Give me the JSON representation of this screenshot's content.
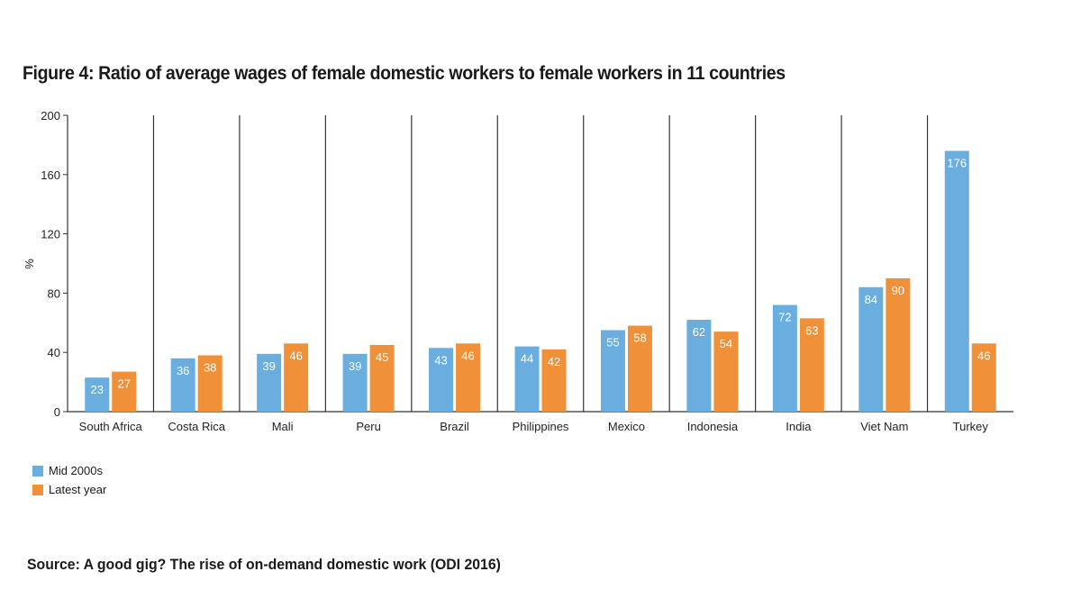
{
  "chart_data": {
    "type": "bar",
    "title": "Figure 4: Ratio of average wages of female domestic workers to female workers in 11 countries",
    "ylabel": "%",
    "xlabel": "",
    "ylim": [
      0,
      200
    ],
    "yticks": [
      0,
      40,
      80,
      120,
      160,
      200
    ],
    "categories": [
      "South Africa",
      "Costa Rica",
      "Mali",
      "Peru",
      "Brazil",
      "Philippines",
      "Mexico",
      "Indonesia",
      "India",
      "Viet Nam",
      "Turkey"
    ],
    "series": [
      {
        "name": "Mid 2000s",
        "color": "#6aaee0",
        "values": [
          23,
          36,
          39,
          39,
          43,
          44,
          55,
          62,
          72,
          84,
          176
        ]
      },
      {
        "name": "Latest year",
        "color": "#f0913a",
        "values": [
          27,
          38,
          46,
          45,
          46,
          42,
          58,
          54,
          63,
          90,
          46
        ]
      }
    ],
    "legend": "bottom-left"
  },
  "source": "Source: A good gig? The rise of on-demand domestic work (ODI 2016)"
}
